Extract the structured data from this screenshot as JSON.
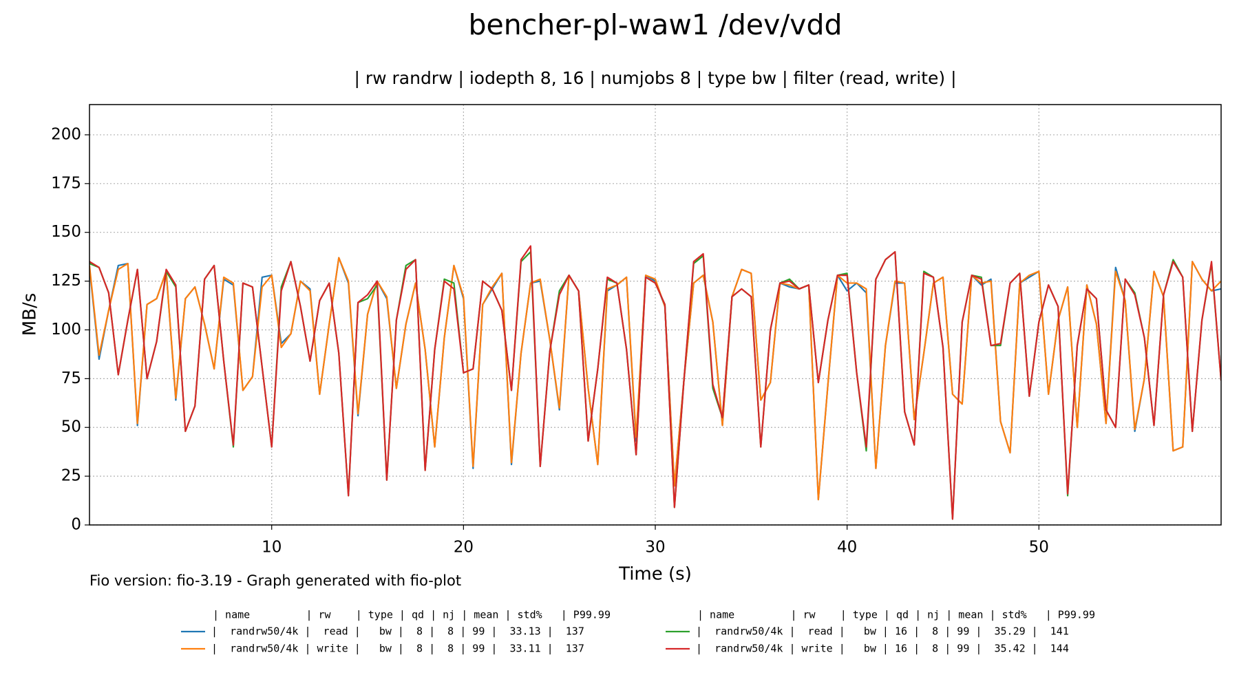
{
  "chart_data": {
    "type": "line",
    "title": "bencher-pl-waw1 /dev/vdd",
    "subtitle": "| rw randrw | iodepth 8, 16 | numjobs 8 | type bw | filter (read, write) |",
    "xlabel": "Time (s)",
    "ylabel": "MB/s",
    "footnote": "Fio version: fio-3.19 - Graph generated with fio-plot",
    "legend_header": "| name         | rw    | type | qd | nj | mean | std%   | P99.99",
    "grid": true,
    "xlim": [
      0.5,
      59.5
    ],
    "xticks": [
      10,
      20,
      30,
      40,
      50
    ],
    "ylim": [
      0,
      215.5
    ],
    "yticks": [
      0,
      25,
      50,
      75,
      100,
      125,
      150,
      175,
      200
    ],
    "x": [
      0.5,
      1,
      1.5,
      2,
      2.5,
      3,
      3.5,
      4,
      4.5,
      5,
      5.5,
      6,
      6.5,
      7,
      7.5,
      8,
      8.5,
      9,
      9.5,
      10,
      10.5,
      11,
      11.5,
      12,
      12.5,
      13,
      13.5,
      14,
      14.5,
      15,
      15.5,
      16,
      16.5,
      17,
      17.5,
      18,
      18.5,
      19,
      19.5,
      20,
      20.5,
      21,
      21.5,
      22,
      22.5,
      23,
      23.5,
      24,
      24.5,
      25,
      25.5,
      26,
      26.5,
      27,
      27.5,
      28,
      28.5,
      29,
      29.5,
      30,
      30.5,
      31,
      31.5,
      32,
      32.5,
      33,
      33.5,
      34,
      34.5,
      35,
      35.5,
      36,
      36.5,
      37,
      37.5,
      38,
      38.5,
      39,
      39.5,
      40,
      40.5,
      41,
      41.5,
      42,
      42.5,
      43,
      43.5,
      44,
      44.5,
      45,
      45.5,
      46,
      46.5,
      47,
      47.5,
      48,
      48.5,
      49,
      49.5,
      50,
      50.5,
      51,
      51.5,
      52,
      52.5,
      53,
      53.5,
      54,
      54.5,
      55,
      55.5,
      56,
      56.5,
      57,
      57.5,
      58,
      58.5,
      59,
      59.5
    ],
    "series": [
      {
        "name": "|  randrw50/4k |  read |   bw |  8 |  8 | 99 |  33.13 |  137",
        "color": "#1f77b4",
        "values": [
          132,
          85,
          110,
          133,
          134,
          51,
          113,
          116,
          130,
          64,
          116,
          122,
          103,
          80,
          126,
          123,
          69,
          76,
          127,
          128,
          93,
          98,
          125,
          121,
          67,
          103,
          137,
          124,
          56,
          108,
          125,
          116,
          70,
          103,
          124,
          90,
          40,
          96,
          133,
          116,
          29,
          113,
          121,
          129,
          31,
          88,
          124,
          125,
          95,
          59,
          128,
          120,
          70,
          31,
          120,
          123,
          127,
          43,
          128,
          125,
          112,
          20,
          75,
          124,
          128,
          104,
          51,
          117,
          131,
          129,
          64,
          73,
          124,
          122,
          121,
          123,
          13,
          72,
          128,
          120,
          124,
          119,
          29,
          92,
          124,
          124,
          54,
          88,
          124,
          127,
          67,
          62,
          128,
          123,
          126,
          53,
          37,
          124,
          127,
          130,
          67,
          105,
          122,
          50,
          123,
          103,
          52,
          132,
          115,
          48,
          75,
          130,
          117,
          38,
          40,
          135,
          126,
          120,
          121
        ]
      },
      {
        "name": "|  randrw50/4k | write |   bw |  8 |  8 | 99 |  33.11 |  137",
        "color": "#ff7f0e",
        "values": [
          133,
          87,
          110,
          131,
          134,
          52,
          113,
          116,
          130,
          65,
          116,
          122,
          103,
          80,
          127,
          124,
          69,
          76,
          122,
          128,
          91,
          98,
          125,
          120,
          67,
          103,
          137,
          125,
          57,
          108,
          125,
          117,
          70,
          103,
          124,
          90,
          40,
          96,
          133,
          117,
          30,
          113,
          122,
          129,
          32,
          88,
          124,
          126,
          95,
          60,
          128,
          120,
          70,
          31,
          121,
          123,
          127,
          45,
          128,
          126,
          112,
          20,
          75,
          124,
          128,
          104,
          51,
          117,
          131,
          129,
          64,
          73,
          124,
          123,
          121,
          123,
          13,
          72,
          128,
          124,
          124,
          121,
          29,
          92,
          125,
          124,
          54,
          88,
          124,
          127,
          67,
          62,
          128,
          124,
          125,
          53,
          37,
          124,
          128,
          130,
          67,
          105,
          122,
          50,
          123,
          103,
          52,
          130,
          115,
          49,
          75,
          130,
          117,
          38,
          40,
          135,
          126,
          120,
          125
        ]
      },
      {
        "name": "|  randrw50/4k |  read |   bw | 16 |  8 | 99 |  35.29 |  141",
        "color": "#2ca02c",
        "values": [
          134,
          132,
          119,
          77,
          105,
          131,
          75,
          94,
          130,
          122,
          48,
          61,
          126,
          133,
          84,
          40,
          124,
          122,
          81,
          40,
          122,
          135,
          112,
          84,
          115,
          124,
          88,
          15,
          114,
          116,
          123,
          23,
          105,
          133,
          136,
          28,
          90,
          126,
          124,
          78,
          80,
          125,
          121,
          110,
          69,
          135,
          140,
          30,
          89,
          120,
          128,
          120,
          43,
          80,
          126,
          124,
          90,
          36,
          127,
          124,
          113,
          9,
          75,
          134,
          138,
          70,
          55,
          117,
          121,
          117,
          40,
          100,
          124,
          126,
          121,
          123,
          73,
          105,
          128,
          129,
          78,
          38,
          126,
          136,
          140,
          58,
          41,
          130,
          127,
          91,
          3,
          104,
          128,
          127,
          92,
          92,
          124,
          129,
          66,
          104,
          123,
          112,
          15,
          92,
          121,
          116,
          59,
          50,
          126,
          119,
          96,
          51,
          118,
          136,
          127,
          48,
          105,
          134,
          74
        ]
      },
      {
        "name": "|  randrw50/4k | write |   bw | 16 |  8 | 99 |  35.42 |  144",
        "color": "#d62728",
        "values": [
          135,
          132,
          119,
          77,
          105,
          131,
          75,
          94,
          131,
          123,
          48,
          61,
          126,
          133,
          84,
          41,
          124,
          122,
          81,
          40,
          120,
          135,
          112,
          84,
          115,
          124,
          88,
          15,
          114,
          118,
          125,
          23,
          105,
          131,
          136,
          28,
          90,
          125,
          121,
          78,
          80,
          125,
          121,
          110,
          69,
          136,
          143,
          30,
          89,
          118,
          128,
          120,
          43,
          80,
          127,
          124,
          90,
          36,
          127,
          124,
          113,
          9,
          75,
          135,
          139,
          72,
          55,
          117,
          121,
          117,
          40,
          100,
          124,
          125,
          121,
          123,
          73,
          105,
          128,
          128,
          78,
          40,
          126,
          136,
          140,
          58,
          41,
          129,
          127,
          91,
          3,
          104,
          128,
          126,
          92,
          93,
          124,
          129,
          66,
          104,
          123,
          112,
          16,
          92,
          121,
          116,
          59,
          50,
          126,
          118,
          96,
          51,
          118,
          135,
          127,
          48,
          105,
          135,
          74
        ]
      }
    ]
  }
}
